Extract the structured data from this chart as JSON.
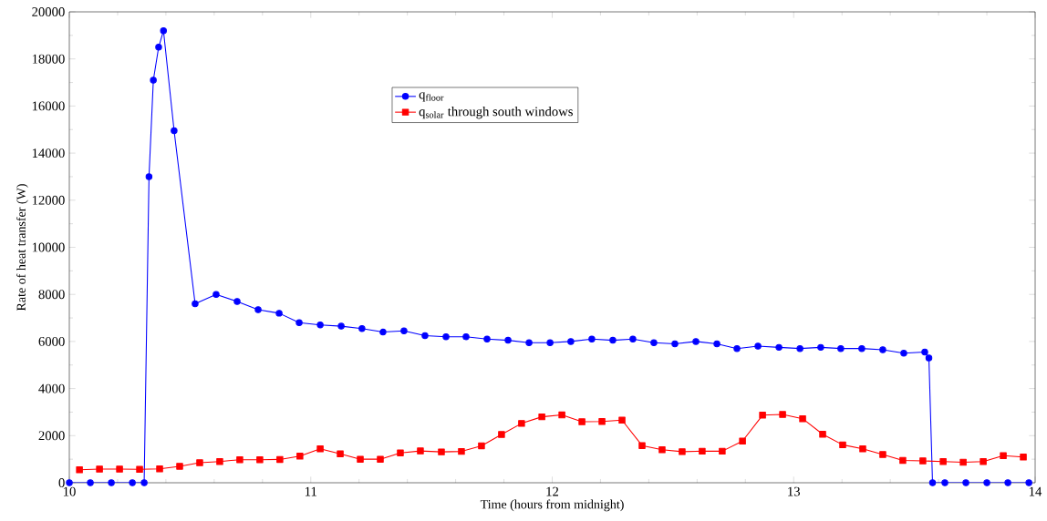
{
  "chart_data": {
    "type": "line",
    "xlabel": "Time (hours from midnight)",
    "ylabel": "Rate of heat transfer (W)",
    "xlim": [
      10,
      14
    ],
    "ylim": [
      0,
      20000
    ],
    "xticks": [
      10,
      11,
      12,
      13,
      14
    ],
    "yticks": [
      0,
      2000,
      4000,
      6000,
      8000,
      10000,
      12000,
      14000,
      16000,
      18000,
      20000
    ],
    "grid": false,
    "legend": "top",
    "series": [
      {
        "name": "q$_{floor}$",
        "color": "#0000ff",
        "marker": "circle",
        "x": [
          10.0,
          10.087,
          10.174,
          10.261,
          10.31,
          10.33,
          10.348,
          10.37,
          10.39,
          10.434,
          10.521,
          10.608,
          10.695,
          10.782,
          10.869,
          10.952,
          11.039,
          11.126,
          11.212,
          11.299,
          11.386,
          11.473,
          11.56,
          11.643,
          11.73,
          11.817,
          11.904,
          11.991,
          12.077,
          12.164,
          12.251,
          12.334,
          12.421,
          12.508,
          12.595,
          12.682,
          12.765,
          12.852,
          12.939,
          13.026,
          13.112,
          13.195,
          13.282,
          13.369,
          13.456,
          13.543,
          13.56,
          13.575,
          13.626,
          13.713,
          13.8,
          13.887,
          13.974
        ],
        "values": [
          0,
          0,
          0,
          0,
          0,
          13000,
          17100,
          18500,
          19200,
          14950,
          7600,
          8000,
          7700,
          7350,
          7200,
          6800,
          6700,
          6650,
          6550,
          6400,
          6450,
          6250,
          6200,
          6200,
          6100,
          6050,
          5950,
          5950,
          6000,
          6100,
          6050,
          6100,
          5950,
          5900,
          6000,
          5900,
          5700,
          5800,
          5750,
          5700,
          5750,
          5700,
          5700,
          5650,
          5500,
          5550,
          5300,
          0,
          0,
          0,
          0,
          0,
          0
        ]
      },
      {
        "name": "q$_{solar}$ through south windows",
        "color": "#ff0000",
        "marker": "square",
        "x": [
          10.042,
          10.125,
          10.208,
          10.291,
          10.374,
          10.457,
          10.54,
          10.623,
          10.706,
          10.789,
          10.872,
          10.955,
          11.039,
          11.122,
          11.205,
          11.288,
          11.371,
          11.454,
          11.541,
          11.624,
          11.707,
          11.79,
          11.873,
          11.957,
          12.04,
          12.123,
          12.206,
          12.289,
          12.372,
          12.455,
          12.538,
          12.621,
          12.704,
          12.788,
          12.871,
          12.954,
          13.037,
          13.12,
          13.203,
          13.286,
          13.369,
          13.452,
          13.535,
          13.619,
          13.702,
          13.785,
          13.868,
          13.951
        ],
        "values": [
          550,
          580,
          580,
          570,
          590,
          700,
          850,
          900,
          980,
          980,
          990,
          1130,
          1440,
          1230,
          1000,
          1000,
          1270,
          1350,
          1310,
          1330,
          1570,
          2050,
          2520,
          2800,
          2880,
          2590,
          2600,
          2660,
          1580,
          1400,
          1320,
          1340,
          1340,
          1770,
          2870,
          2900,
          2720,
          2060,
          1610,
          1440,
          1200,
          950,
          930,
          900,
          870,
          900,
          1150,
          1090
        ]
      }
    ]
  }
}
